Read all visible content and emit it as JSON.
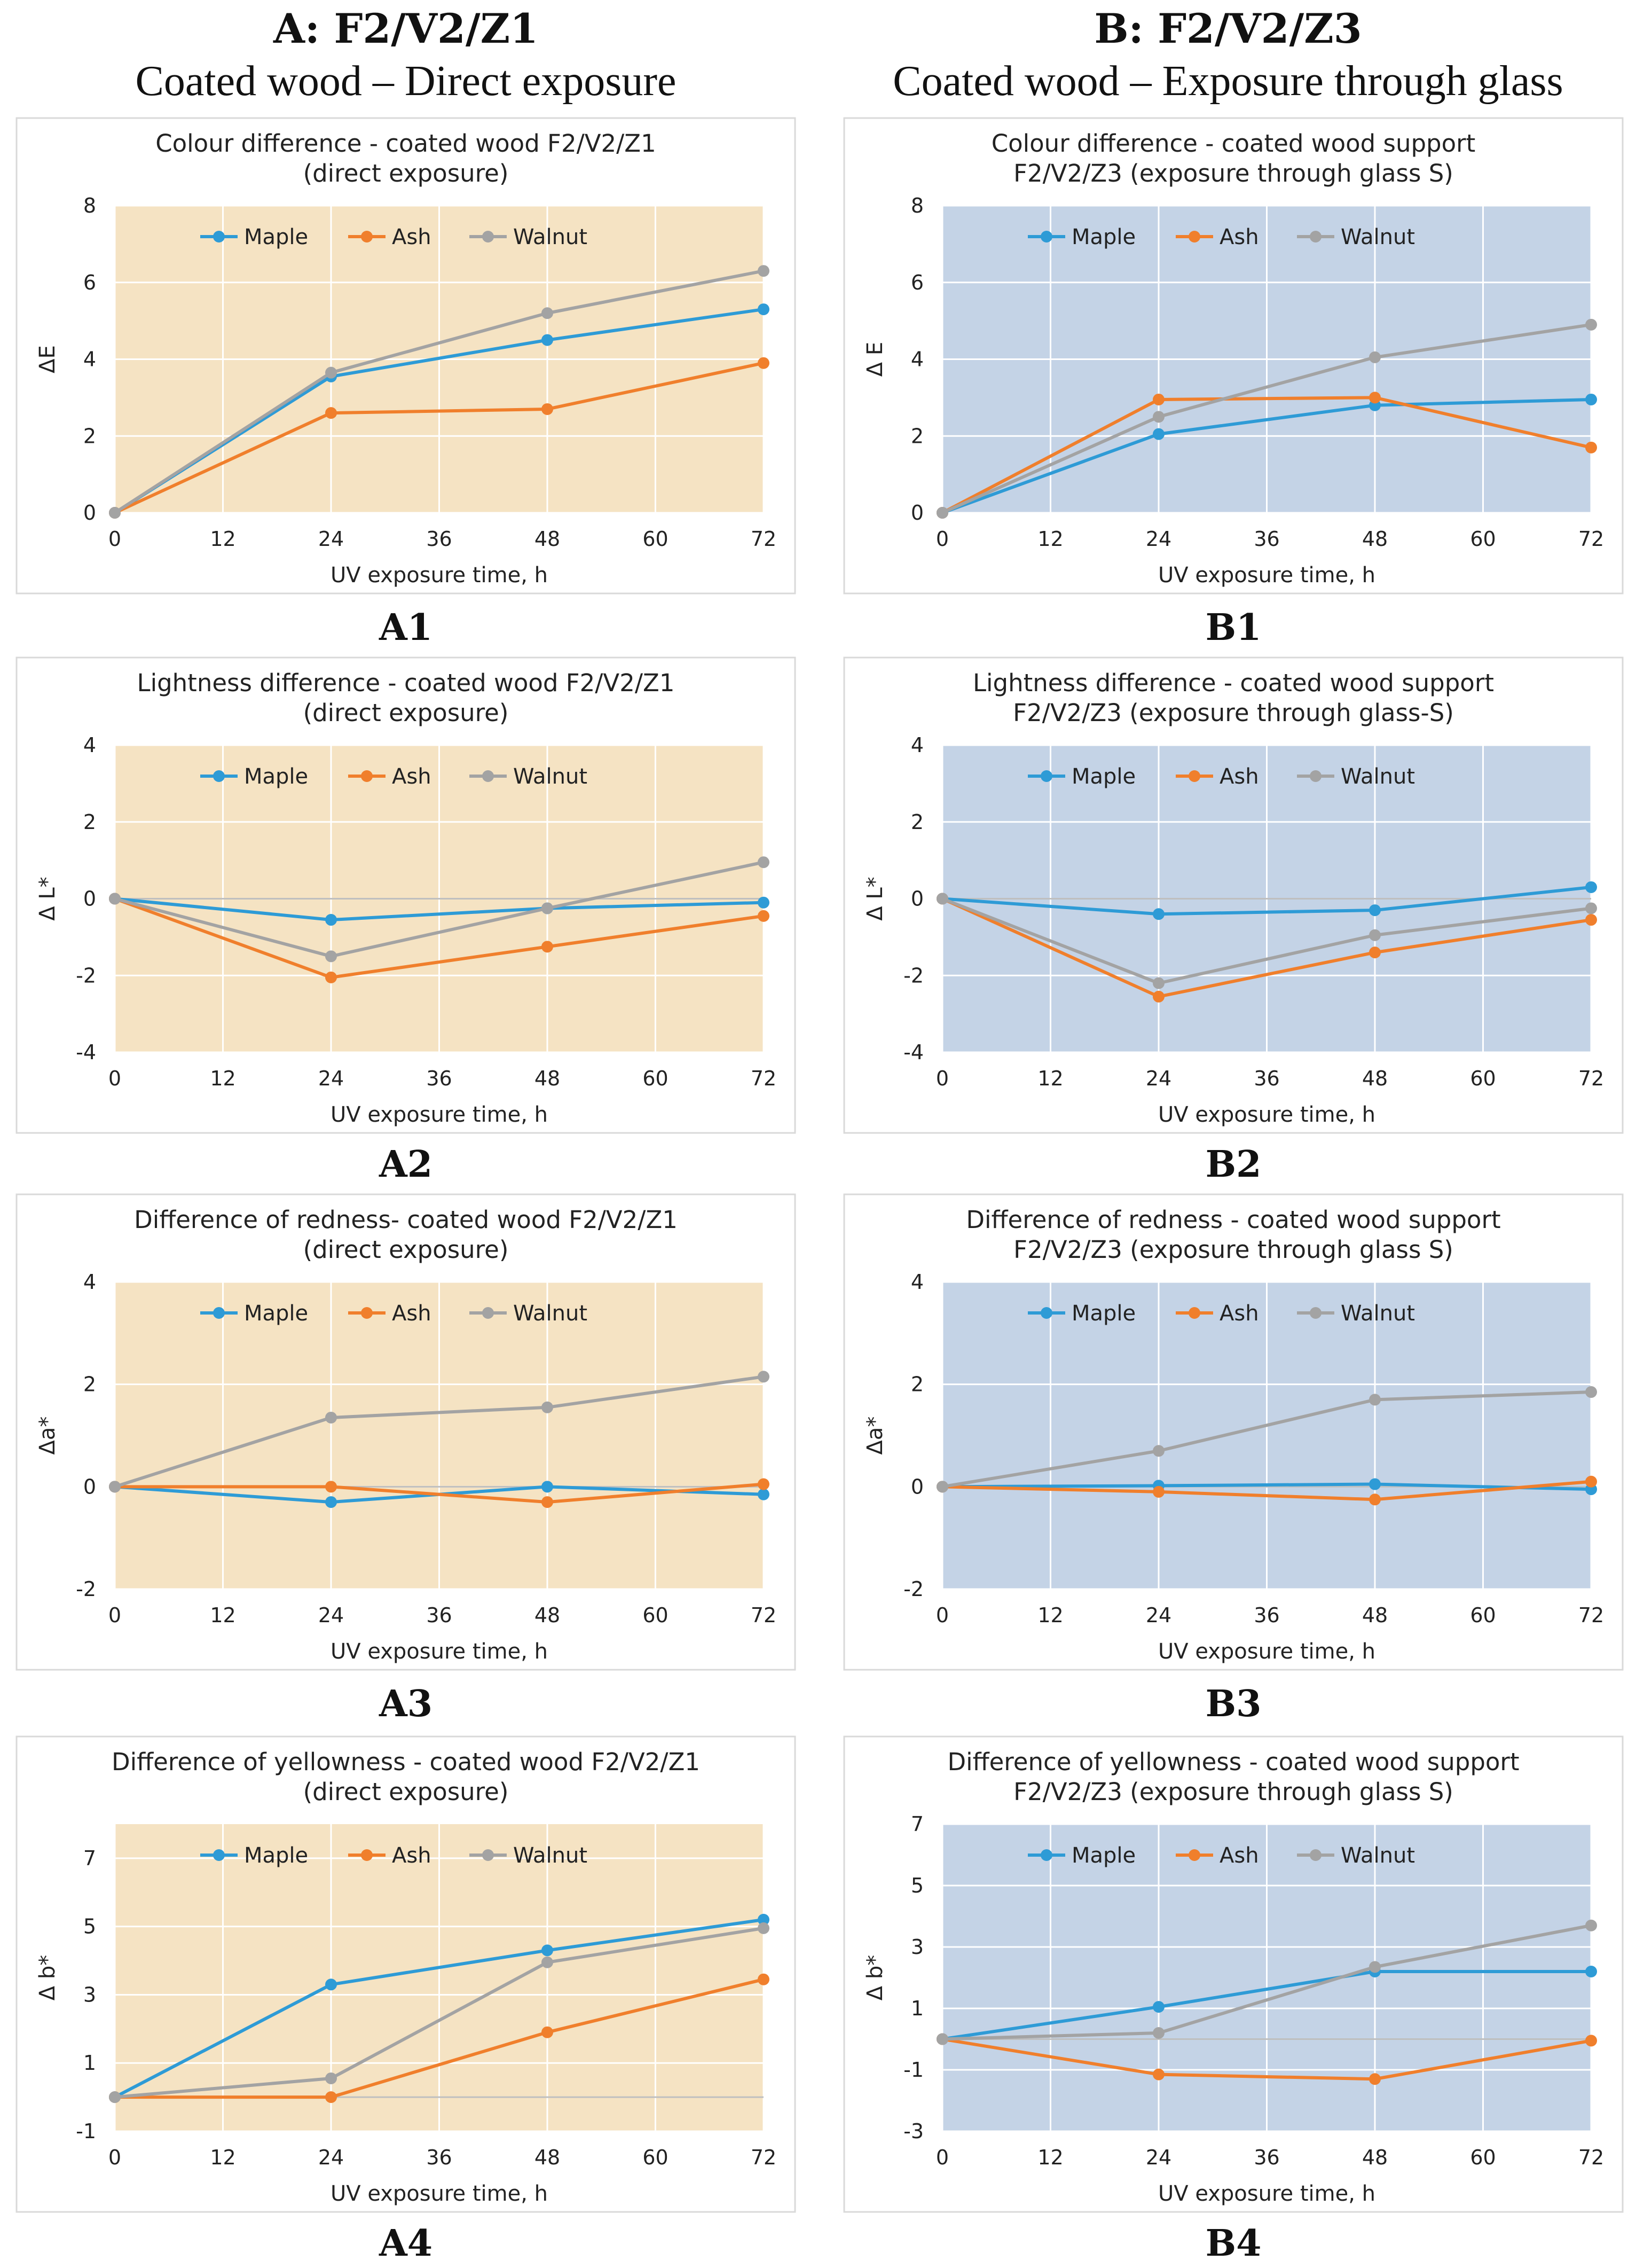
{
  "columns": [
    {
      "heading": "A: F2/V2/Z1",
      "subheading": "Coated wood – Direct exposure"
    },
    {
      "heading": "B: F2/V2/Z3",
      "subheading": "Coated wood – Exposure through glass"
    }
  ],
  "colors": {
    "Maple": "#2e9bd6",
    "Ash": "#f07f2c",
    "Walnut": "#a3a3a3",
    "bg_A": "#f5e3c3",
    "bg_B": "#c4d3e6",
    "grid": "#ffffff",
    "frame": "#d9d9d9"
  },
  "chart_data": [
    {
      "id": "A1",
      "panel_label": "A1",
      "type": "line",
      "title_lines": [
        "Colour difference - coated wood F2/V2/Z1",
        "(direct exposure)"
      ],
      "xlabel": "UV exposure time, h",
      "ylabel": "ΔE",
      "x": [
        0,
        24,
        48,
        72
      ],
      "xticks": [
        0,
        12,
        24,
        36,
        48,
        60,
        72
      ],
      "xlim": [
        0,
        72
      ],
      "ylim": [
        0,
        8
      ],
      "yticks": [
        0,
        2,
        4,
        6,
        8
      ],
      "legend": "top-left",
      "background": "bg_A",
      "series": [
        {
          "name": "Maple",
          "values": [
            0,
            3.55,
            4.5,
            5.3
          ]
        },
        {
          "name": "Ash",
          "values": [
            0,
            2.6,
            2.7,
            3.9
          ]
        },
        {
          "name": "Walnut",
          "values": [
            0,
            3.65,
            5.2,
            6.3
          ]
        }
      ]
    },
    {
      "id": "B1",
      "panel_label": "B1",
      "type": "line",
      "title_lines": [
        "Colour difference - coated wood support",
        "F2/V2/Z3 (exposure through glass S)"
      ],
      "xlabel": "UV exposure time, h",
      "ylabel": "Δ E",
      "x": [
        0,
        24,
        48,
        72
      ],
      "xticks": [
        0,
        12,
        24,
        36,
        48,
        60,
        72
      ],
      "xlim": [
        0,
        72
      ],
      "ylim": [
        0,
        8
      ],
      "yticks": [
        0,
        2,
        4,
        6,
        8
      ],
      "legend": "top-left",
      "background": "bg_B",
      "series": [
        {
          "name": "Maple",
          "values": [
            0,
            2.05,
            2.8,
            2.95
          ]
        },
        {
          "name": "Ash",
          "values": [
            0,
            2.95,
            3.0,
            1.7
          ]
        },
        {
          "name": "Walnut",
          "values": [
            0,
            2.5,
            4.05,
            4.9
          ]
        }
      ]
    },
    {
      "id": "A2",
      "panel_label": "A2",
      "type": "line",
      "title_lines": [
        "Lightness difference - coated wood F2/V2/Z1",
        "(direct exposure)"
      ],
      "xlabel": "UV exposure time, h",
      "ylabel": "Δ L*",
      "x": [
        0,
        24,
        48,
        72
      ],
      "xticks": [
        0,
        12,
        24,
        36,
        48,
        60,
        72
      ],
      "xlim": [
        0,
        72
      ],
      "ylim": [
        -4,
        4
      ],
      "yticks": [
        -4,
        -2,
        0,
        2,
        4
      ],
      "legend": "top-left",
      "background": "bg_A",
      "series": [
        {
          "name": "Maple",
          "values": [
            0,
            -0.55,
            -0.25,
            -0.1
          ]
        },
        {
          "name": "Ash",
          "values": [
            0,
            -2.05,
            -1.25,
            -0.45
          ]
        },
        {
          "name": "Walnut",
          "values": [
            0,
            -1.5,
            -0.25,
            0.95
          ]
        }
      ]
    },
    {
      "id": "B2",
      "panel_label": "B2",
      "type": "line",
      "title_lines": [
        "Lightness difference - coated wood support",
        "F2/V2/Z3 (exposure through glass-S)"
      ],
      "xlabel": "UV exposure time, h",
      "ylabel": "Δ L*",
      "x": [
        0,
        24,
        48,
        72
      ],
      "xticks": [
        0,
        12,
        24,
        36,
        48,
        60,
        72
      ],
      "xlim": [
        0,
        72
      ],
      "ylim": [
        -4,
        4
      ],
      "yticks": [
        -4,
        -2,
        0,
        2,
        4
      ],
      "legend": "top-left",
      "background": "bg_B",
      "series": [
        {
          "name": "Maple",
          "values": [
            0,
            -0.4,
            -0.3,
            0.3
          ]
        },
        {
          "name": "Ash",
          "values": [
            0,
            -2.55,
            -1.4,
            -0.55
          ]
        },
        {
          "name": "Walnut",
          "values": [
            0,
            -2.2,
            -0.95,
            -0.25
          ]
        }
      ]
    },
    {
      "id": "A3",
      "panel_label": "A3",
      "type": "line",
      "title_lines": [
        "Difference of redness- coated wood F2/V2/Z1",
        "(direct exposure)"
      ],
      "xlabel": "UV exposure time, h",
      "ylabel": "Δa*",
      "x": [
        0,
        24,
        48,
        72
      ],
      "xticks": [
        0,
        12,
        24,
        36,
        48,
        60,
        72
      ],
      "xlim": [
        0,
        72
      ],
      "ylim": [
        -2,
        4
      ],
      "yticks": [
        -2,
        0,
        2,
        4
      ],
      "legend": "top-left",
      "background": "bg_A",
      "series": [
        {
          "name": "Maple",
          "values": [
            0,
            -0.3,
            0,
            -0.15
          ]
        },
        {
          "name": "Ash",
          "values": [
            0,
            0,
            -0.3,
            0.05
          ]
        },
        {
          "name": "Walnut",
          "values": [
            0,
            1.35,
            1.55,
            2.15
          ]
        }
      ]
    },
    {
      "id": "B3",
      "panel_label": "B3",
      "type": "line",
      "title_lines": [
        "Difference of redness - coated wood support",
        "F2/V2/Z3 (exposure through glass S)"
      ],
      "xlabel": "UV exposure time, h",
      "ylabel": "Δa*",
      "x": [
        0,
        24,
        48,
        72
      ],
      "xticks": [
        0,
        12,
        24,
        36,
        48,
        60,
        72
      ],
      "xlim": [
        0,
        72
      ],
      "ylim": [
        -2,
        4
      ],
      "yticks": [
        -2,
        0,
        2,
        4
      ],
      "legend": "top-left",
      "background": "bg_B",
      "series": [
        {
          "name": "Maple",
          "values": [
            0,
            0.02,
            0.05,
            -0.05
          ]
        },
        {
          "name": "Ash",
          "values": [
            0,
            -0.1,
            -0.25,
            0.1
          ]
        },
        {
          "name": "Walnut",
          "values": [
            0,
            0.7,
            1.7,
            1.85
          ]
        }
      ]
    },
    {
      "id": "A4",
      "panel_label": "A4",
      "type": "line",
      "title_lines": [
        "Difference of yellowness - coated wood F2/V2/Z1",
        "(direct exposure)"
      ],
      "xlabel": "UV exposure time, h",
      "ylabel": "Δ b*",
      "x": [
        0,
        24,
        48,
        72
      ],
      "xticks": [
        0,
        12,
        24,
        36,
        48,
        60,
        72
      ],
      "xlim": [
        0,
        72
      ],
      "ylim": [
        -1,
        8
      ],
      "yticks": [
        -1,
        1,
        3,
        5,
        7
      ],
      "legend": "top-left",
      "background": "bg_A",
      "series": [
        {
          "name": "Maple",
          "values": [
            0,
            3.3,
            4.3,
            5.2
          ]
        },
        {
          "name": "Ash",
          "values": [
            0,
            0,
            1.9,
            3.45
          ]
        },
        {
          "name": "Walnut",
          "values": [
            0,
            0.55,
            3.95,
            4.95
          ]
        }
      ]
    },
    {
      "id": "B4",
      "panel_label": "B4",
      "type": "line",
      "title_lines": [
        "Difference of yellowness - coated wood support",
        "F2/V2/Z3 (exposure through glass S)"
      ],
      "xlabel": "UV exposure time, h",
      "ylabel": "Δ b*",
      "x": [
        0,
        24,
        48,
        72
      ],
      "xticks": [
        0,
        12,
        24,
        36,
        48,
        60,
        72
      ],
      "xlim": [
        0,
        72
      ],
      "ylim": [
        -3,
        7
      ],
      "yticks": [
        -3,
        -1,
        1,
        3,
        5,
        7
      ],
      "legend": "top-left",
      "background": "bg_B",
      "series": [
        {
          "name": "Maple",
          "values": [
            0,
            1.05,
            2.2,
            2.2
          ]
        },
        {
          "name": "Ash",
          "values": [
            0,
            -1.15,
            -1.3,
            -0.05
          ]
        },
        {
          "name": "Walnut",
          "values": [
            0,
            0.2,
            2.35,
            3.7
          ]
        }
      ]
    }
  ]
}
